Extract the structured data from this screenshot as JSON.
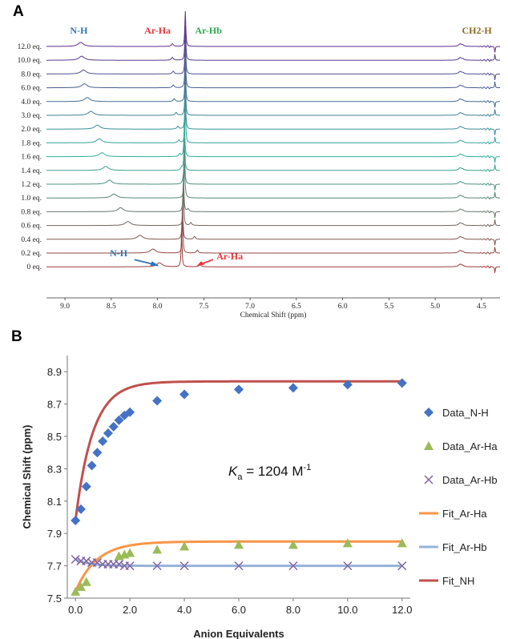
{
  "chart_data": [
    {
      "panel": "A",
      "type": "line",
      "xlabel": "Chemical Shift (ppm)",
      "xlim": [
        9.2,
        4.3
      ],
      "x_ticks": [
        "9.0",
        "8.5",
        "8.0",
        "7.5",
        "7.0",
        "6.5",
        "6.0",
        "5.5",
        "5.0",
        "4.5"
      ],
      "peak_labels": [
        {
          "text": "N-H",
          "color": "#2e75b6"
        },
        {
          "text": "Ar-Ha",
          "color": "#e8353b"
        },
        {
          "text": "Ar-Hb",
          "color": "#2eaa4e"
        },
        {
          "text": "CH2-H",
          "color": "#8a6a1f"
        }
      ],
      "arrow_labels": [
        {
          "text": "N-H",
          "color": "#2e75b6"
        },
        {
          "text": "Ar-Ha",
          "color": "#e8353b"
        }
      ],
      "series": [
        {
          "name": "12.0 eq.",
          "nh": 8.83,
          "ha": 7.84,
          "hb": 7.7
        },
        {
          "name": "10.0 eq.",
          "nh": 8.82,
          "ha": 7.84,
          "hb": 7.7
        },
        {
          "name": "8.0 eq.",
          "nh": 8.8,
          "ha": 7.83,
          "hb": 7.7
        },
        {
          "name": "6.0 eq.",
          "nh": 8.79,
          "ha": 7.83,
          "hb": 7.7
        },
        {
          "name": "4.0 eq.",
          "nh": 8.76,
          "ha": 7.82,
          "hb": 7.7
        },
        {
          "name": "3.0 eq.",
          "nh": 8.72,
          "ha": 7.8,
          "hb": 7.7
        },
        {
          "name": "2.0 eq.",
          "nh": 8.65,
          "ha": 7.78,
          "hb": 7.7
        },
        {
          "name": "1.8 eq.",
          "nh": 8.63,
          "ha": 7.77,
          "hb": 7.7
        },
        {
          "name": "1.6 eq.",
          "nh": 8.6,
          "ha": 7.76,
          "hb": 7.71
        },
        {
          "name": "1.4 eq.",
          "nh": 8.56,
          "ha": 7.74,
          "hb": 7.71
        },
        {
          "name": "1.2 eq.",
          "nh": 8.52,
          "ha": 7.72,
          "hb": 7.71
        },
        {
          "name": "1.0 eq.",
          "nh": 8.47,
          "ha": 7.7,
          "hb": 7.71
        },
        {
          "name": "0.8 eq.",
          "nh": 8.4,
          "ha": 7.67,
          "hb": 7.72
        },
        {
          "name": "0.6 eq.",
          "nh": 8.32,
          "ha": 7.64,
          "hb": 7.72
        },
        {
          "name": "0.4 eq.",
          "nh": 8.19,
          "ha": 7.6,
          "hb": 7.73
        },
        {
          "name": "0.2 eq.",
          "nh": 8.05,
          "ha": 7.57,
          "hb": 7.73
        },
        {
          "name": "0 eq.",
          "nh": 7.98,
          "ha": 7.54,
          "hb": 7.74
        }
      ]
    },
    {
      "panel": "B",
      "type": "scatter",
      "xlabel": "Anion Equivalents",
      "ylabel": "Chemical Shift (ppm)",
      "xlim": [
        -0.3,
        12.3
      ],
      "ylim": [
        7.5,
        9.0
      ],
      "x_ticks": [
        "0.0",
        "2.0",
        "4.0",
        "6.0",
        "8.0",
        "10.0",
        "12.0"
      ],
      "y_ticks": [
        "7.5",
        "7.7",
        "7.9",
        "8.1",
        "8.3",
        "8.5",
        "8.7",
        "8.9"
      ],
      "annotation": {
        "K": "K",
        "sub": "a",
        "main": " = 1204 M",
        "sup": "-1"
      },
      "x": [
        0,
        0.2,
        0.4,
        0.6,
        0.8,
        1.0,
        1.2,
        1.4,
        1.6,
        1.8,
        2.0,
        3.0,
        4.0,
        6.0,
        8.0,
        10.0,
        12.0
      ],
      "series": [
        {
          "name": "Data_N-H",
          "kind": "marker",
          "marker": "diamond",
          "color": "#4472c4",
          "values": [
            7.98,
            8.05,
            8.19,
            8.32,
            8.4,
            8.47,
            8.52,
            8.56,
            8.6,
            8.63,
            8.65,
            8.72,
            8.76,
            8.79,
            8.8,
            8.82,
            8.83
          ]
        },
        {
          "name": "Data_Ar-Ha",
          "kind": "marker",
          "marker": "triangle",
          "color": "#9bbb59",
          "values": [
            7.54,
            7.57,
            7.6,
            null,
            null,
            null,
            null,
            null,
            7.76,
            7.77,
            7.78,
            7.8,
            7.82,
            7.83,
            7.83,
            7.84,
            7.84
          ]
        },
        {
          "name": "Data_Ar-Hb",
          "kind": "marker",
          "marker": "cross",
          "color": "#8064a2",
          "values": [
            7.74,
            7.73,
            7.73,
            7.72,
            7.72,
            7.71,
            7.71,
            7.71,
            7.71,
            7.7,
            7.7,
            7.7,
            7.7,
            7.7,
            7.7,
            7.7,
            7.7
          ]
        },
        {
          "name": "Fit_Ar-Ha",
          "kind": "line",
          "color": "#f79646"
        },
        {
          "name": "Fit_Ar-Hb",
          "kind": "line",
          "color": "#95b3d7"
        },
        {
          "name": "Fit_NH",
          "kind": "line",
          "color": "#c0504d"
        }
      ],
      "fits": {
        "Fit_NH": {
          "start": 7.98,
          "end": 8.84,
          "rate": 0.75
        },
        "Fit_Ar-Ha": {
          "start": 7.54,
          "end": 7.85,
          "rate": 0.6
        },
        "Fit_Ar-Hb": {
          "start": 7.74,
          "end": 7.7,
          "rate": 1.0
        }
      }
    }
  ]
}
